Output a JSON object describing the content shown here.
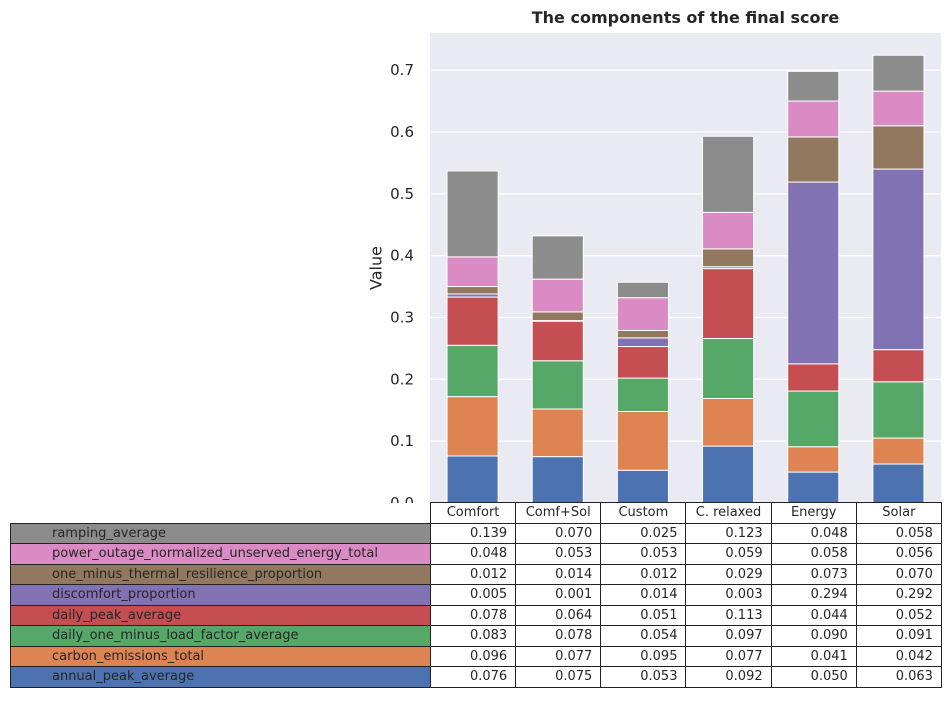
{
  "chart_data": {
    "type": "bar",
    "stacked": true,
    "title": "The components of the final score",
    "xlabel": "",
    "ylabel": "Value",
    "ylim": [
      0,
      0.76
    ],
    "yticks": [
      "0.0",
      "0.1",
      "0.2",
      "0.3",
      "0.4",
      "0.5",
      "0.6",
      "0.7"
    ],
    "grid": true,
    "categories": [
      "Comfort",
      "Comf+Sol",
      "Custom",
      "C. relaxed",
      "Energy",
      "Solar"
    ],
    "series": [
      {
        "name": "annual_peak_average",
        "color": "#4c72b0",
        "values": [
          0.076,
          0.075,
          0.053,
          0.092,
          0.05,
          0.063
        ]
      },
      {
        "name": "carbon_emissions_total",
        "color": "#dd8452",
        "values": [
          0.096,
          0.077,
          0.095,
          0.077,
          0.041,
          0.042
        ]
      },
      {
        "name": "daily_one_minus_load_factor_average",
        "color": "#55a868",
        "values": [
          0.083,
          0.078,
          0.054,
          0.097,
          0.09,
          0.091
        ]
      },
      {
        "name": "daily_peak_average",
        "color": "#c44e52",
        "values": [
          0.078,
          0.064,
          0.051,
          0.113,
          0.044,
          0.052
        ]
      },
      {
        "name": "discomfort_proportion",
        "color": "#8172b3",
        "values": [
          0.005,
          0.001,
          0.014,
          0.003,
          0.294,
          0.292
        ]
      },
      {
        "name": "one_minus_thermal_resilience_proportion",
        "color": "#937860",
        "values": [
          0.012,
          0.014,
          0.012,
          0.029,
          0.073,
          0.07
        ]
      },
      {
        "name": "power_outage_normalized_unserved_energy_total",
        "color": "#da8bc3",
        "values": [
          0.048,
          0.053,
          0.053,
          0.059,
          0.058,
          0.056
        ]
      },
      {
        "name": "ramping_average",
        "color": "#8c8c8c",
        "values": [
          0.139,
          0.07,
          0.025,
          0.123,
          0.048,
          0.058
        ]
      }
    ],
    "table": {
      "row_order": [
        "ramping_average",
        "power_outage_normalized_unserved_energy_total",
        "one_minus_thermal_resilience_proportion",
        "discomfort_proportion",
        "daily_peak_average",
        "daily_one_minus_load_factor_average",
        "carbon_emissions_total",
        "annual_peak_average"
      ],
      "cells": [
        [
          "0.139",
          "0.070",
          "0.025",
          "0.123",
          "0.048",
          "0.058"
        ],
        [
          "0.048",
          "0.053",
          "0.053",
          "0.059",
          "0.058",
          "0.056"
        ],
        [
          "0.012",
          "0.014",
          "0.012",
          "0.029",
          "0.073",
          "0.070"
        ],
        [
          "0.005",
          "0.001",
          "0.014",
          "0.003",
          "0.294",
          "0.292"
        ],
        [
          "0.078",
          "0.064",
          "0.051",
          "0.113",
          "0.044",
          "0.052"
        ],
        [
          "0.083",
          "0.078",
          "0.054",
          "0.097",
          "0.090",
          "0.091"
        ],
        [
          "0.096",
          "0.077",
          "0.095",
          "0.077",
          "0.041",
          "0.042"
        ],
        [
          "0.076",
          "0.075",
          "0.053",
          "0.092",
          "0.050",
          "0.063"
        ]
      ]
    },
    "plot_background": "#eaeaf2"
  }
}
